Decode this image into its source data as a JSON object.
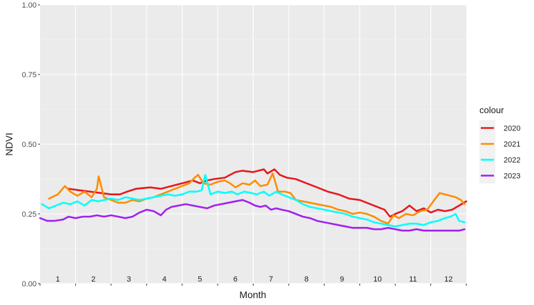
{
  "chart_data": {
    "type": "line",
    "title": "",
    "xlabel": "Month",
    "ylabel": "NDVI",
    "ylim": [
      0,
      1
    ],
    "xlim": [
      0.5,
      12.5
    ],
    "y_ticks": [
      "0.00",
      "0.25",
      "0.50",
      "0.75",
      "1.00"
    ],
    "y_tick_values": [
      0,
      0.25,
      0.5,
      0.75,
      1.0
    ],
    "month_labels": [
      "1",
      "2",
      "3",
      "4",
      "5",
      "6",
      "7",
      "8",
      "9",
      "10",
      "11",
      "12"
    ],
    "grid": true,
    "legend": {
      "title": "colour",
      "position": "right"
    },
    "series": [
      {
        "name": "2020",
        "color": "#e41a1c",
        "points": [
          [
            1.3,
            0.34
          ],
          [
            1.6,
            0.335
          ],
          [
            1.9,
            0.33
          ],
          [
            2.2,
            0.325
          ],
          [
            2.5,
            0.32
          ],
          [
            2.75,
            0.32
          ],
          [
            2.95,
            0.33
          ],
          [
            3.2,
            0.34
          ],
          [
            3.6,
            0.345
          ],
          [
            3.9,
            0.34
          ],
          [
            4.2,
            0.35
          ],
          [
            4.5,
            0.36
          ],
          [
            4.8,
            0.37
          ],
          [
            5.0,
            0.36
          ],
          [
            5.2,
            0.37
          ],
          [
            5.4,
            0.375
          ],
          [
            5.7,
            0.38
          ],
          [
            5.85,
            0.39
          ],
          [
            6.0,
            0.4
          ],
          [
            6.2,
            0.405
          ],
          [
            6.5,
            0.4
          ],
          [
            6.8,
            0.41
          ],
          [
            6.9,
            0.395
          ],
          [
            7.1,
            0.41
          ],
          [
            7.25,
            0.39
          ],
          [
            7.45,
            0.38
          ],
          [
            7.7,
            0.375
          ],
          [
            8.0,
            0.36
          ],
          [
            8.3,
            0.345
          ],
          [
            8.6,
            0.33
          ],
          [
            8.9,
            0.32
          ],
          [
            9.2,
            0.305
          ],
          [
            9.5,
            0.3
          ],
          [
            9.8,
            0.285
          ],
          [
            10.0,
            0.275
          ],
          [
            10.2,
            0.265
          ],
          [
            10.35,
            0.24
          ],
          [
            10.5,
            0.25
          ],
          [
            10.7,
            0.26
          ],
          [
            10.9,
            0.28
          ],
          [
            11.1,
            0.26
          ],
          [
            11.3,
            0.27
          ],
          [
            11.5,
            0.255
          ],
          [
            11.7,
            0.265
          ],
          [
            11.9,
            0.26
          ],
          [
            12.1,
            0.265
          ],
          [
            12.3,
            0.28
          ],
          [
            12.5,
            0.295
          ]
        ]
      },
      {
        "name": "2021",
        "color": "#ff8c00",
        "points": [
          [
            0.75,
            0.305
          ],
          [
            1.0,
            0.32
          ],
          [
            1.2,
            0.35
          ],
          [
            1.35,
            0.33
          ],
          [
            1.55,
            0.315
          ],
          [
            1.75,
            0.33
          ],
          [
            1.95,
            0.31
          ],
          [
            2.1,
            0.34
          ],
          [
            2.15,
            0.385
          ],
          [
            2.3,
            0.31
          ],
          [
            2.5,
            0.3
          ],
          [
            2.7,
            0.29
          ],
          [
            2.9,
            0.29
          ],
          [
            3.1,
            0.3
          ],
          [
            3.3,
            0.295
          ],
          [
            3.5,
            0.305
          ],
          [
            3.7,
            0.31
          ],
          [
            3.9,
            0.32
          ],
          [
            4.1,
            0.33
          ],
          [
            4.3,
            0.34
          ],
          [
            4.5,
            0.35
          ],
          [
            4.7,
            0.36
          ],
          [
            4.85,
            0.38
          ],
          [
            4.95,
            0.39
          ],
          [
            5.1,
            0.36
          ],
          [
            5.3,
            0.355
          ],
          [
            5.5,
            0.365
          ],
          [
            5.7,
            0.37
          ],
          [
            5.85,
            0.36
          ],
          [
            6.0,
            0.345
          ],
          [
            6.2,
            0.36
          ],
          [
            6.4,
            0.355
          ],
          [
            6.55,
            0.37
          ],
          [
            6.7,
            0.35
          ],
          [
            6.9,
            0.355
          ],
          [
            7.05,
            0.395
          ],
          [
            7.2,
            0.33
          ],
          [
            7.4,
            0.33
          ],
          [
            7.55,
            0.325
          ],
          [
            7.7,
            0.3
          ],
          [
            7.9,
            0.295
          ],
          [
            8.1,
            0.29
          ],
          [
            8.3,
            0.285
          ],
          [
            8.5,
            0.28
          ],
          [
            8.7,
            0.275
          ],
          [
            8.9,
            0.265
          ],
          [
            9.1,
            0.26
          ],
          [
            9.3,
            0.25
          ],
          [
            9.5,
            0.255
          ],
          [
            9.7,
            0.25
          ],
          [
            9.9,
            0.24
          ],
          [
            10.1,
            0.225
          ],
          [
            10.3,
            0.215
          ],
          [
            10.45,
            0.245
          ],
          [
            10.6,
            0.235
          ],
          [
            10.8,
            0.25
          ],
          [
            11.0,
            0.245
          ],
          [
            11.2,
            0.26
          ],
          [
            11.4,
            0.265
          ],
          [
            11.6,
            0.3
          ],
          [
            11.75,
            0.325
          ],
          [
            11.9,
            0.32
          ],
          [
            12.05,
            0.315
          ],
          [
            12.2,
            0.31
          ],
          [
            12.35,
            0.3
          ],
          [
            12.45,
            0.285
          ]
        ]
      },
      {
        "name": "2022",
        "color": "#00ffff",
        "points": [
          [
            0.55,
            0.285
          ],
          [
            0.75,
            0.27
          ],
          [
            0.95,
            0.28
          ],
          [
            1.15,
            0.29
          ],
          [
            1.35,
            0.285
          ],
          [
            1.55,
            0.295
          ],
          [
            1.75,
            0.28
          ],
          [
            1.95,
            0.3
          ],
          [
            2.15,
            0.295
          ],
          [
            2.3,
            0.3
          ],
          [
            2.5,
            0.305
          ],
          [
            2.7,
            0.3
          ],
          [
            2.9,
            0.31
          ],
          [
            3.1,
            0.305
          ],
          [
            3.3,
            0.3
          ],
          [
            3.5,
            0.305
          ],
          [
            3.7,
            0.31
          ],
          [
            3.9,
            0.315
          ],
          [
            4.1,
            0.32
          ],
          [
            4.3,
            0.315
          ],
          [
            4.5,
            0.32
          ],
          [
            4.7,
            0.33
          ],
          [
            4.9,
            0.33
          ],
          [
            5.05,
            0.335
          ],
          [
            5.15,
            0.39
          ],
          [
            5.3,
            0.32
          ],
          [
            5.5,
            0.33
          ],
          [
            5.7,
            0.325
          ],
          [
            5.9,
            0.33
          ],
          [
            6.05,
            0.32
          ],
          [
            6.25,
            0.33
          ],
          [
            6.45,
            0.325
          ],
          [
            6.6,
            0.32
          ],
          [
            6.8,
            0.33
          ],
          [
            6.95,
            0.315
          ],
          [
            7.15,
            0.33
          ],
          [
            7.3,
            0.32
          ],
          [
            7.5,
            0.31
          ],
          [
            7.7,
            0.3
          ],
          [
            7.9,
            0.285
          ],
          [
            8.1,
            0.275
          ],
          [
            8.3,
            0.27
          ],
          [
            8.5,
            0.265
          ],
          [
            8.7,
            0.26
          ],
          [
            8.9,
            0.255
          ],
          [
            9.1,
            0.25
          ],
          [
            9.3,
            0.24
          ],
          [
            9.5,
            0.235
          ],
          [
            9.7,
            0.23
          ],
          [
            9.9,
            0.22
          ],
          [
            10.1,
            0.215
          ],
          [
            10.3,
            0.21
          ],
          [
            10.5,
            0.205
          ],
          [
            10.7,
            0.21
          ],
          [
            10.9,
            0.215
          ],
          [
            11.1,
            0.215
          ],
          [
            11.3,
            0.21
          ],
          [
            11.5,
            0.22
          ],
          [
            11.7,
            0.225
          ],
          [
            11.9,
            0.235
          ],
          [
            12.05,
            0.24
          ],
          [
            12.2,
            0.25
          ],
          [
            12.3,
            0.225
          ],
          [
            12.45,
            0.22
          ]
        ]
      },
      {
        "name": "2023",
        "color": "#a020f0",
        "points": [
          [
            0.5,
            0.235
          ],
          [
            0.7,
            0.225
          ],
          [
            0.9,
            0.225
          ],
          [
            1.15,
            0.23
          ],
          [
            1.3,
            0.24
          ],
          [
            1.5,
            0.235
          ],
          [
            1.7,
            0.24
          ],
          [
            1.9,
            0.24
          ],
          [
            2.1,
            0.245
          ],
          [
            2.3,
            0.24
          ],
          [
            2.5,
            0.245
          ],
          [
            2.7,
            0.24
          ],
          [
            2.9,
            0.235
          ],
          [
            3.1,
            0.24
          ],
          [
            3.3,
            0.255
          ],
          [
            3.5,
            0.265
          ],
          [
            3.7,
            0.26
          ],
          [
            3.9,
            0.245
          ],
          [
            4.05,
            0.265
          ],
          [
            4.2,
            0.275
          ],
          [
            4.4,
            0.28
          ],
          [
            4.6,
            0.285
          ],
          [
            4.8,
            0.28
          ],
          [
            5.0,
            0.275
          ],
          [
            5.2,
            0.27
          ],
          [
            5.4,
            0.28
          ],
          [
            5.6,
            0.285
          ],
          [
            5.8,
            0.29
          ],
          [
            6.0,
            0.295
          ],
          [
            6.2,
            0.3
          ],
          [
            6.4,
            0.29
          ],
          [
            6.55,
            0.28
          ],
          [
            6.7,
            0.275
          ],
          [
            6.85,
            0.28
          ],
          [
            7.0,
            0.265
          ],
          [
            7.15,
            0.27
          ],
          [
            7.3,
            0.265
          ],
          [
            7.5,
            0.26
          ],
          [
            7.7,
            0.25
          ],
          [
            7.9,
            0.24
          ],
          [
            8.1,
            0.235
          ],
          [
            8.3,
            0.225
          ],
          [
            8.5,
            0.22
          ],
          [
            8.7,
            0.215
          ],
          [
            8.9,
            0.21
          ],
          [
            9.1,
            0.205
          ],
          [
            9.3,
            0.2
          ],
          [
            9.5,
            0.2
          ],
          [
            9.7,
            0.2
          ],
          [
            9.9,
            0.195
          ],
          [
            10.1,
            0.195
          ],
          [
            10.3,
            0.2
          ],
          [
            10.5,
            0.195
          ],
          [
            10.7,
            0.19
          ],
          [
            10.9,
            0.19
          ],
          [
            11.1,
            0.195
          ],
          [
            11.3,
            0.19
          ],
          [
            11.5,
            0.19
          ],
          [
            11.7,
            0.19
          ],
          [
            11.9,
            0.19
          ],
          [
            12.1,
            0.19
          ],
          [
            12.3,
            0.19
          ],
          [
            12.45,
            0.195
          ]
        ]
      }
    ]
  }
}
